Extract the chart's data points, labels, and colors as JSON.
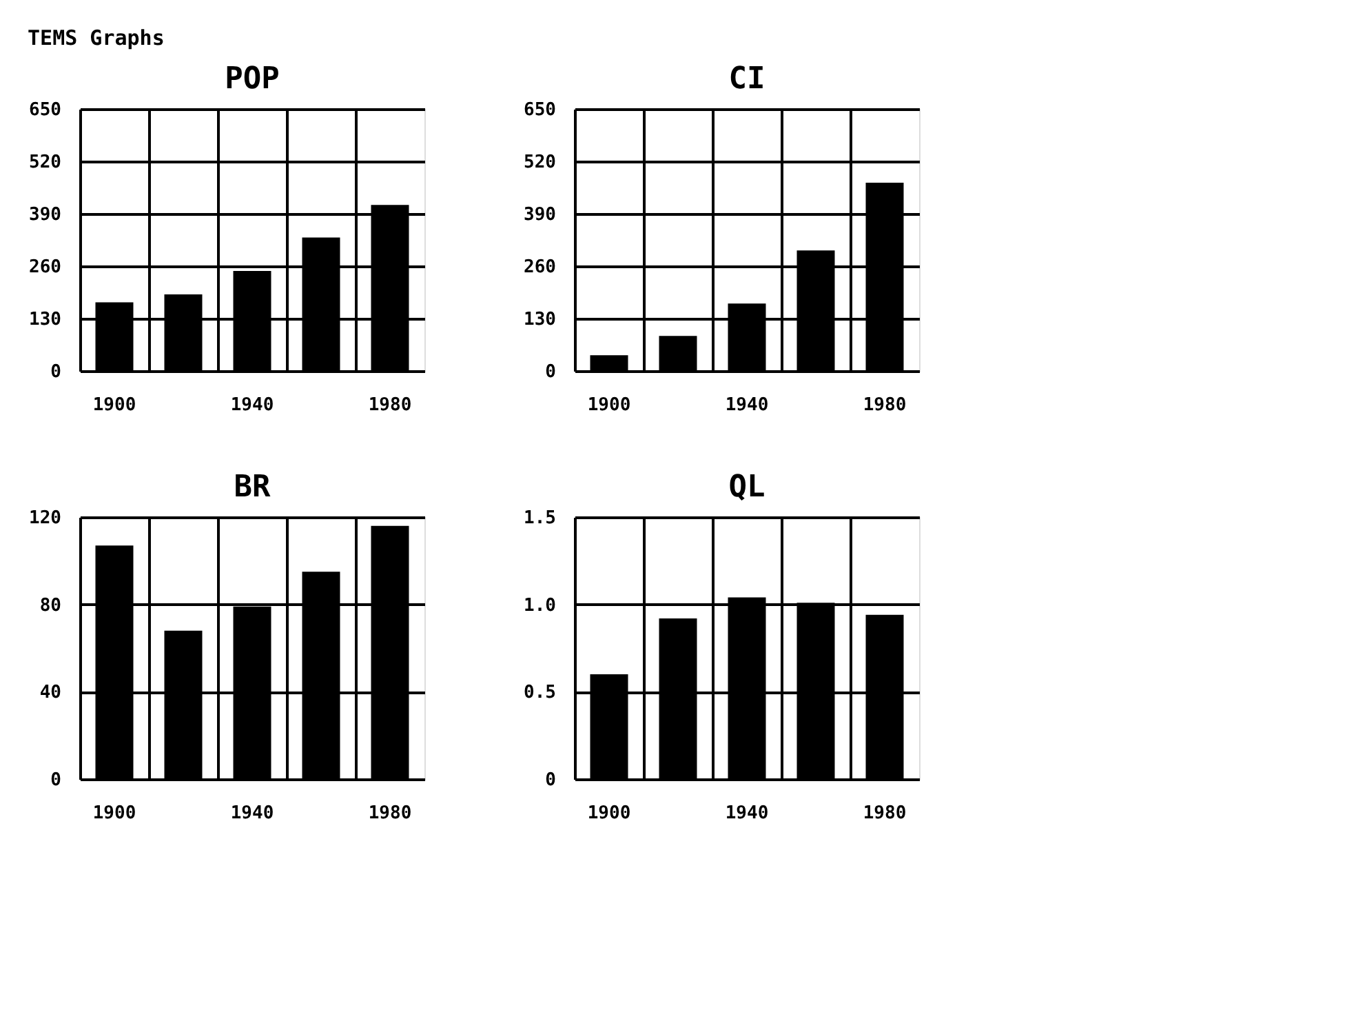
{
  "chart_data": [
    {
      "type": "bar",
      "title": "POP",
      "annotations": [
        "TEMS Graphs"
      ],
      "categories": [
        "1900",
        null,
        "1940",
        null,
        "1980"
      ],
      "values": [
        170,
        190,
        248,
        331,
        412
      ],
      "color": "#000000",
      "ylim": [
        0,
        650
      ],
      "yticks": [
        0,
        130,
        260,
        390,
        520,
        650
      ],
      "grid": true
    },
    {
      "type": "bar",
      "title": "CI",
      "categories": [
        "1900",
        null,
        "1940",
        null,
        "1980"
      ],
      "values": [
        39,
        87,
        167,
        299,
        467
      ],
      "color": "#000000",
      "ylim": [
        0,
        650
      ],
      "yticks": [
        0,
        130,
        260,
        390,
        520,
        650
      ],
      "grid": true
    },
    {
      "type": "bar",
      "title": "BR",
      "categories": [
        "1900",
        null,
        "1940",
        null,
        "1980"
      ],
      "values": [
        107,
        68,
        79,
        95,
        116
      ],
      "color": "#000000",
      "ylim": [
        0,
        120
      ],
      "yticks": [
        0,
        40,
        80,
        120
      ],
      "grid": true
    },
    {
      "type": "bar",
      "title": "QL",
      "categories": [
        "1900",
        null,
        "1940",
        null,
        "1980"
      ],
      "values": [
        0.6,
        0.92,
        1.04,
        1.01,
        0.94
      ],
      "color": "#000000",
      "ylim": [
        0,
        1.5
      ],
      "yticks": [
        0,
        0.5,
        {
          "value": 1,
          "label": "1.0"
        },
        1.5
      ],
      "grid": true
    }
  ]
}
